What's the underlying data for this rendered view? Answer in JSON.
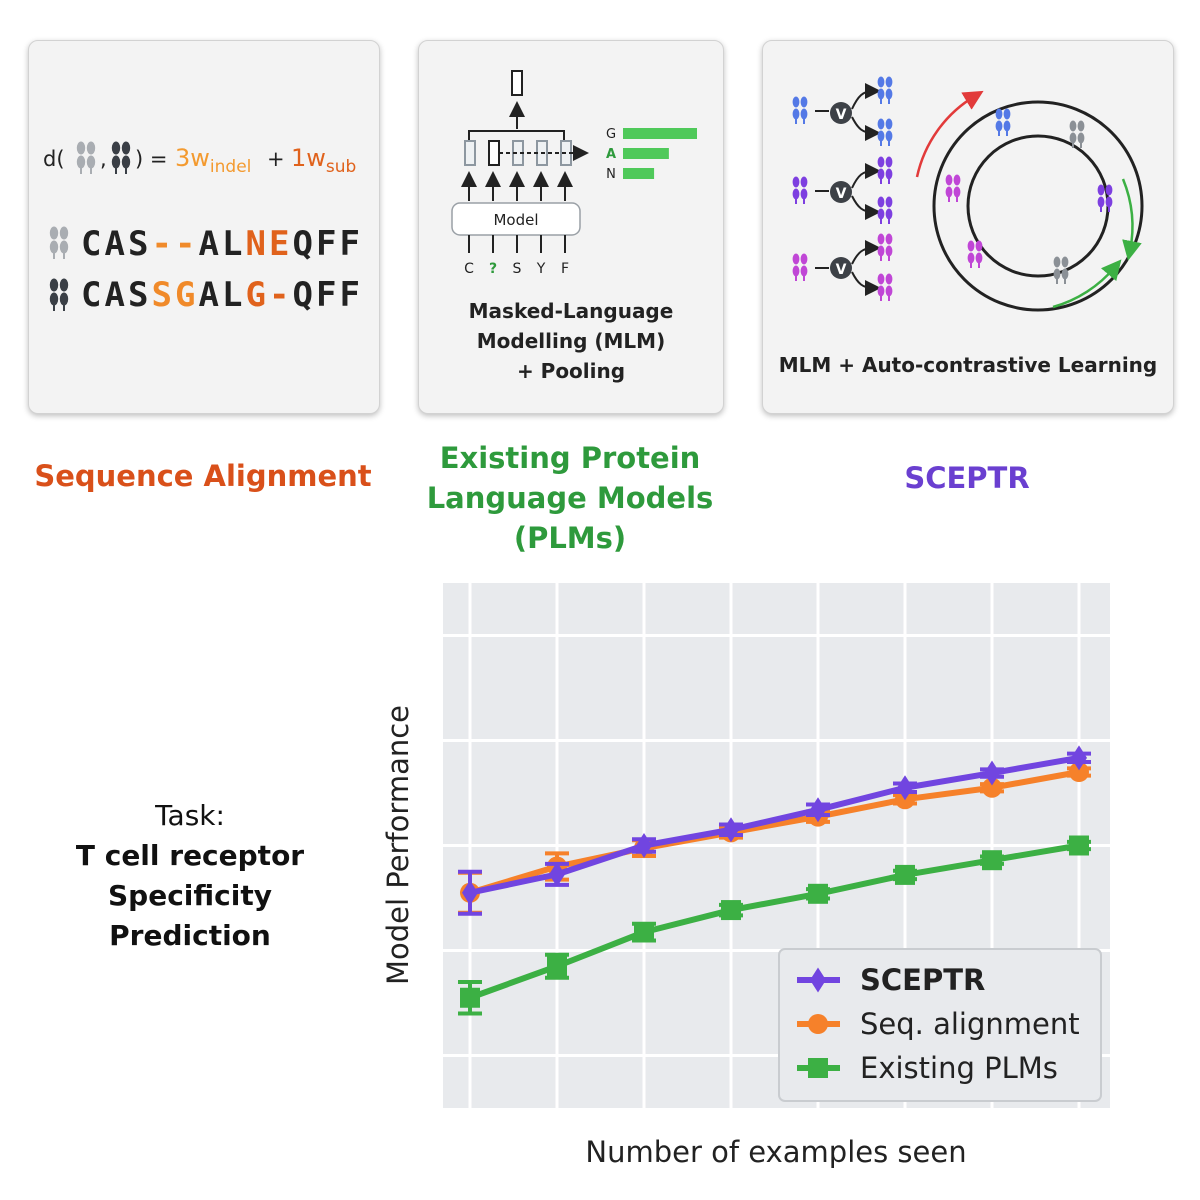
{
  "panels": {
    "sequence_alignment": {
      "formula": {
        "prefix": "d(",
        "sep": ",",
        "close": ") =",
        "term1_coef": "3w",
        "term1_sub": "indel",
        "plus": "+",
        "term2_coef": "1w",
        "term2_sub": "sub"
      },
      "alignment_rows": [
        {
          "chars": [
            "C",
            "A",
            "S",
            "-",
            "-",
            "A",
            "L",
            "N",
            "E",
            "Q",
            "F",
            "F"
          ],
          "colors": [
            "#222",
            "#222",
            "#222",
            "#f08a2a",
            "#f08a2a",
            "#222",
            "#222",
            "#e0621c",
            "#e0621c",
            "#222",
            "#222",
            "#222"
          ]
        },
        {
          "chars": [
            "C",
            "A",
            "S",
            "S",
            "G",
            "A",
            "L",
            "G",
            "-",
            "Q",
            "F",
            "F"
          ],
          "colors": [
            "#222",
            "#222",
            "#222",
            "#f08a2a",
            "#f08a2a",
            "#222",
            "#222",
            "#e0621c",
            "#e0621c",
            "#222",
            "#222",
            "#222"
          ]
        }
      ],
      "caption": "Sequence Alignment"
    },
    "plm": {
      "model_label": "Model",
      "input_tokens": [
        "C",
        "?",
        "S",
        "Y",
        "F"
      ],
      "output_tokens": [
        "G",
        "A",
        "N"
      ],
      "output_bar_values": [
        1.0,
        0.62,
        0.42
      ],
      "title_lines": [
        "Masked-Language",
        "Modelling (MLM)",
        "+ Pooling"
      ],
      "caption_lines": [
        "Existing Protein",
        "Language Models (PLMs)"
      ]
    },
    "sceptr": {
      "operator_symbol": "V",
      "title": "MLM + Auto-contrastive Learning",
      "caption": "SCEPTR"
    }
  },
  "task": {
    "label": "Task:",
    "bold_lines": [
      "T cell receptor",
      "Specificity",
      "Prediction"
    ]
  },
  "chart_data": {
    "type": "line",
    "xlabel": "Number of examples seen",
    "ylabel": "Model Performance",
    "x": [
      1,
      2,
      3,
      4,
      5,
      6,
      7,
      8
    ],
    "ylim": [
      0,
      10
    ],
    "grid": true,
    "legend_position": "bottom-right",
    "series": [
      {
        "name": "SCEPTR",
        "color": "#7145e0",
        "marker": "diamond",
        "values": [
          4.1,
          4.45,
          5.0,
          5.3,
          5.68,
          6.1,
          6.38,
          6.67
        ],
        "errors": [
          0.4,
          0.2,
          0.12,
          0.1,
          0.1,
          0.08,
          0.07,
          0.08
        ]
      },
      {
        "name": "Seq. alignment",
        "color": "#f6812a",
        "marker": "circle",
        "values": [
          4.1,
          4.6,
          4.95,
          5.25,
          5.55,
          5.88,
          6.1,
          6.4
        ],
        "errors": [
          0.38,
          0.25,
          0.15,
          0.1,
          0.1,
          0.08,
          0.07,
          0.07
        ]
      },
      {
        "name": "Existing PLMs",
        "color": "#3cb044",
        "marker": "square",
        "values": [
          2.1,
          2.7,
          3.35,
          3.77,
          4.08,
          4.44,
          4.72,
          5.0
        ],
        "errors": [
          0.3,
          0.22,
          0.16,
          0.1,
          0.09,
          0.08,
          0.07,
          0.07
        ]
      }
    ]
  }
}
